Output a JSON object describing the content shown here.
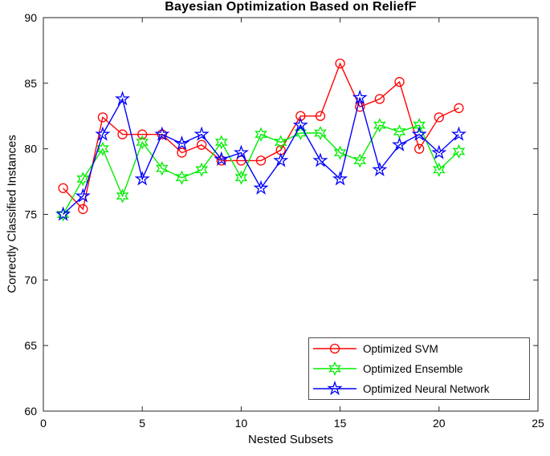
{
  "chart_data": {
    "type": "line",
    "title": "Bayesian Optimization Based on ReliefF",
    "xlabel": "Nested Subsets",
    "ylabel": "Correctly Classified Instances",
    "xlim": [
      0,
      25
    ],
    "ylim": [
      60,
      90
    ],
    "x_ticks": [
      0,
      5,
      10,
      15,
      20,
      25
    ],
    "y_ticks": [
      60,
      65,
      70,
      75,
      80,
      85,
      90
    ],
    "grid": false,
    "legend_position": "lower-right-inside",
    "axis_color": "#262626",
    "x": [
      1,
      2,
      3,
      4,
      5,
      6,
      7,
      8,
      9,
      10,
      11,
      12,
      13,
      14,
      15,
      16,
      17,
      18,
      19,
      20,
      21
    ],
    "series": [
      {
        "name": "Optimized SVM",
        "color": "#ff0000",
        "marker": "circle",
        "values": [
          77.0,
          75.4,
          82.4,
          81.1,
          81.1,
          81.1,
          79.7,
          80.3,
          79.1,
          79.1,
          79.1,
          79.9,
          82.5,
          82.5,
          86.5,
          83.2,
          83.8,
          85.1,
          80.0,
          82.4,
          83.1
        ]
      },
      {
        "name": "Optimized Ensemble",
        "color": "#00ee00",
        "marker": "hexagram",
        "values": [
          75.0,
          77.7,
          80.0,
          76.4,
          80.5,
          78.5,
          77.8,
          78.4,
          80.5,
          77.8,
          81.1,
          80.5,
          81.2,
          81.2,
          79.7,
          79.1,
          81.8,
          81.3,
          81.8,
          78.4,
          79.8
        ]
      },
      {
        "name": "Optimized Neural Network",
        "color": "#0000ff",
        "marker": "pentagram",
        "values": [
          75.0,
          76.4,
          81.1,
          83.8,
          77.7,
          81.1,
          80.4,
          81.1,
          79.2,
          79.7,
          77.0,
          79.1,
          81.8,
          79.1,
          77.7,
          83.9,
          78.4,
          80.3,
          81.1,
          79.7,
          81.1
        ]
      }
    ]
  }
}
